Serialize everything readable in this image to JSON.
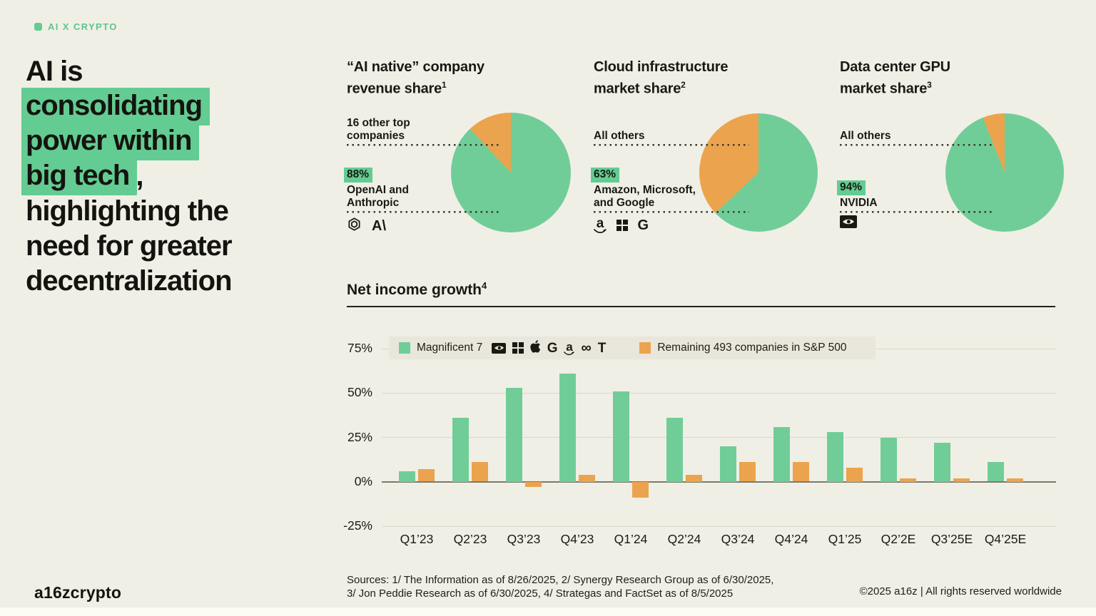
{
  "colors": {
    "bg": "#f0efe6",
    "green": "#71cd98",
    "orange": "#eba44d",
    "highlight": "#63cc92",
    "grid": "#dbd8cb",
    "zero_line": "#7b796d",
    "legend_bg": "#e9e6db"
  },
  "header": {
    "tag": "AI X CRYPTO"
  },
  "headline": {
    "line1": "AI is",
    "line2": "consolidating",
    "line3": "power within",
    "line4": "big tech",
    "line4_suffix": ",",
    "line5": "highlighting the",
    "line6": "need for greater",
    "line7": "decentralization"
  },
  "pies": [
    {
      "title1": "“AI native” company",
      "title2": "revenue share",
      "sup": "1",
      "other1": "16 other top",
      "other2": "companies",
      "pct": "88%",
      "main1": "OpenAI and",
      "main2": "Anthropic"
    },
    {
      "title1": "Cloud infrastructure",
      "title2": "market share",
      "sup": "2",
      "other1": "All others",
      "other2": "",
      "pct": "63%",
      "main1": "Amazon, Microsoft,",
      "main2": "and Google"
    },
    {
      "title1": "Data center GPU",
      "title2": "market share",
      "sup": "3",
      "other1": "All others",
      "other2": "",
      "pct": "94%",
      "main1": "NVIDIA",
      "main2": ""
    }
  ],
  "icons": {
    "anthropic_glyph": "A\\",
    "google_glyph": "G",
    "amazon_glyph": "a",
    "meta_glyph": "∞",
    "tesla_glyph": "T"
  },
  "bar_section": {
    "title": "Net income growth",
    "sup": "4",
    "legend1": "Magnificent 7",
    "legend2": "Remaining 493 companies in S&P 500"
  },
  "footer": {
    "sources_line1": "Sources: 1/ The Information as of 8/26/2025, 2/ Synergy Research Group as of 6/30/2025,",
    "sources_line2": "3/ Jon Peddie Research as of 6/30/2025, 4/ Strategas and FactSet as of 8/5/2025",
    "logo": "a16zcrypto",
    "copyright": "©2025 a16z | All rights reserved worldwide"
  },
  "chart_data": [
    {
      "type": "pie",
      "title": "“AI native” company revenue share",
      "footnote": "1",
      "slices": [
        {
          "label": "OpenAI and Anthropic",
          "value": 88,
          "color": "#71cd98"
        },
        {
          "label": "16 other top companies",
          "value": 12,
          "color": "#eba44d"
        }
      ]
    },
    {
      "type": "pie",
      "title": "Cloud infrastructure market share",
      "footnote": "2",
      "slices": [
        {
          "label": "Amazon, Microsoft, and Google",
          "value": 63,
          "color": "#71cd98"
        },
        {
          "label": "All others",
          "value": 37,
          "color": "#eba44d"
        }
      ]
    },
    {
      "type": "pie",
      "title": "Data center GPU market share",
      "footnote": "3",
      "slices": [
        {
          "label": "NVIDIA",
          "value": 94,
          "color": "#71cd98"
        },
        {
          "label": "All others",
          "value": 6,
          "color": "#eba44d"
        }
      ]
    },
    {
      "type": "bar",
      "title": "Net income growth",
      "footnote": "4",
      "categories": [
        "Q1’23",
        "Q2’23",
        "Q3’23",
        "Q4’23",
        "Q1’24",
        "Q2’24",
        "Q3’24",
        "Q4’24",
        "Q1’25",
        "Q2’2E",
        "Q3’25E",
        "Q4’25E"
      ],
      "series": [
        {
          "name": "Magnificent 7",
          "color": "#71cd98",
          "values": [
            6,
            36,
            53,
            61,
            51,
            36,
            20,
            31,
            28,
            25,
            22,
            11
          ]
        },
        {
          "name": "Remaining 493 companies in S&P 500",
          "color": "#eba44d",
          "values": [
            7,
            11,
            -3,
            4,
            -9,
            4,
            11,
            11,
            8,
            2,
            2,
            2
          ]
        }
      ],
      "ylim": [
        -25,
        75
      ],
      "yticks": [
        75,
        50,
        25,
        0,
        -25
      ],
      "ytick_labels": [
        "75%",
        "50%",
        "25%",
        "0%",
        "-25%"
      ],
      "grid": true,
      "legend_position": "top"
    }
  ]
}
